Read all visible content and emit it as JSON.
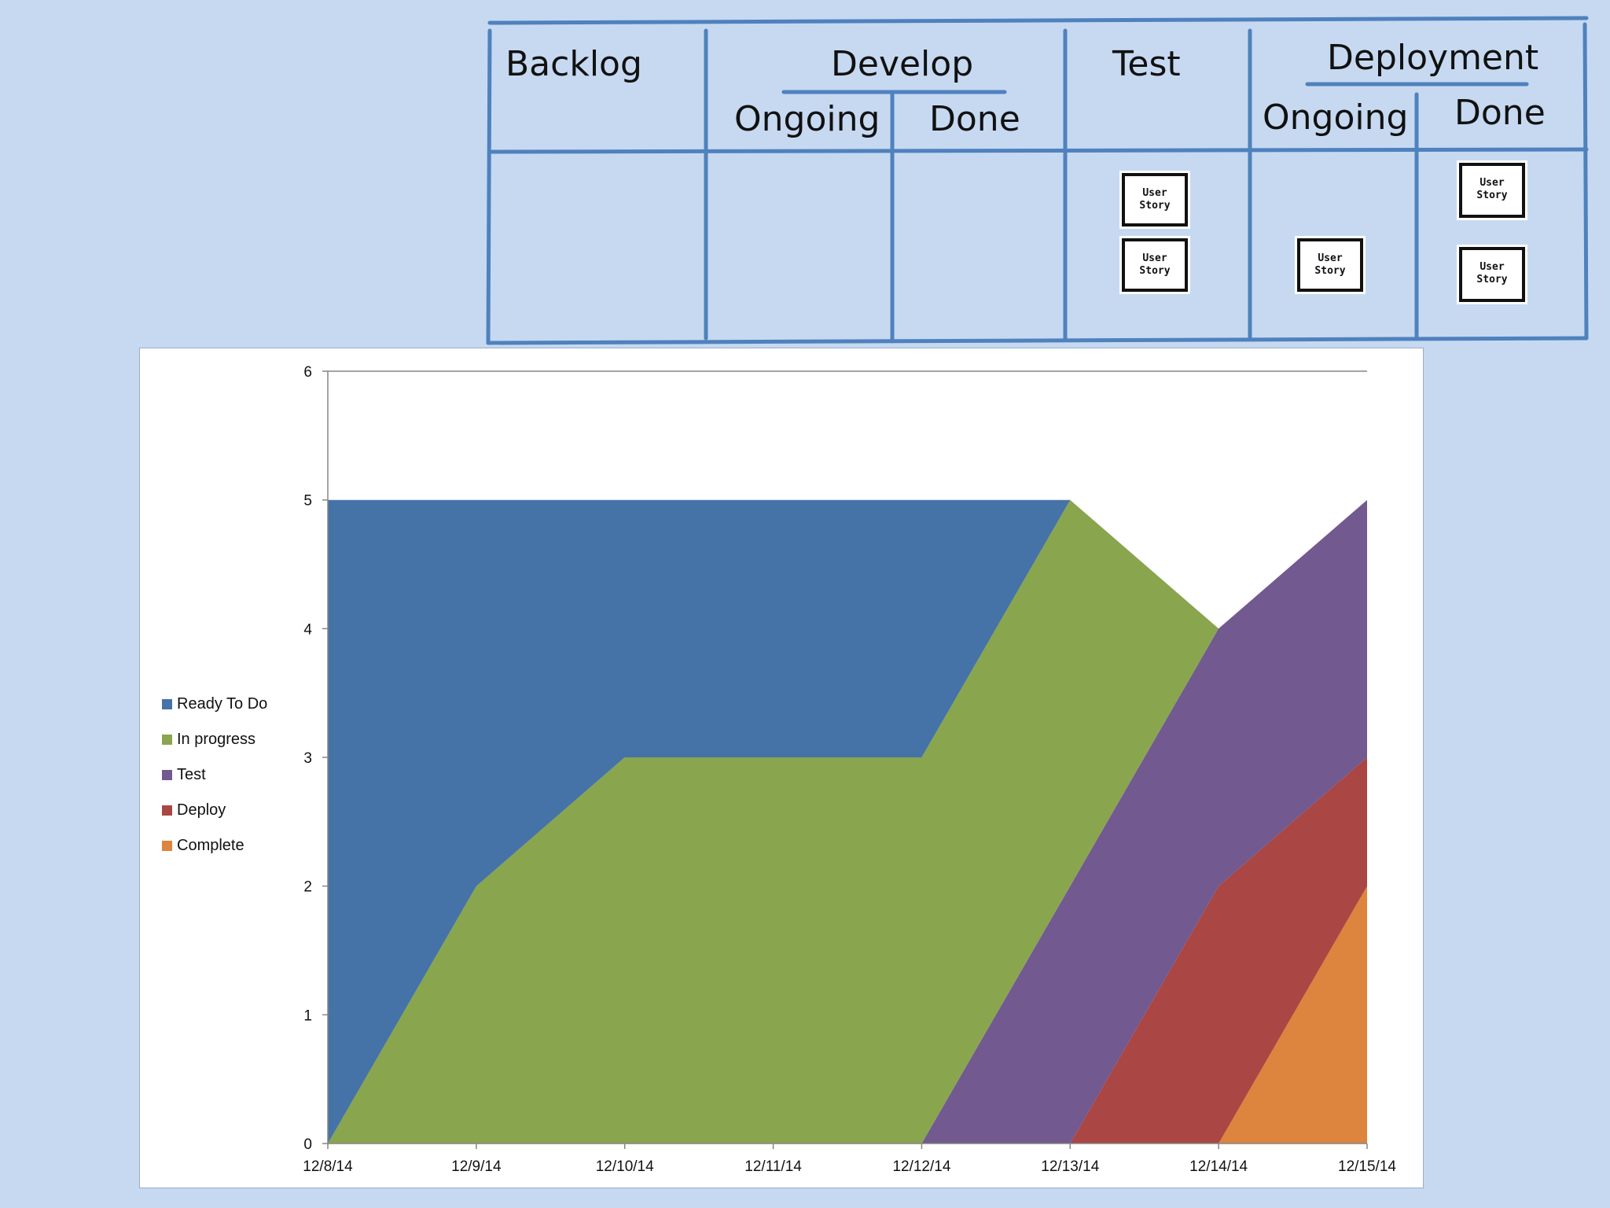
{
  "board": {
    "columns": {
      "backlog": "Backlog",
      "develop": "Develop",
      "develop_ongoing": "Ongoing",
      "develop_done": "Done",
      "test": "Test",
      "deployment": "Deployment",
      "deployment_ongoing": "Ongoing",
      "deployment_done": "Done"
    },
    "card_line1": "User",
    "card_line2": "Story",
    "line_color": "#4f81bd"
  },
  "chart_data": {
    "type": "area",
    "stacked": true,
    "categories": [
      "12/8/14",
      "12/9/14",
      "12/10/14",
      "12/11/14",
      "12/12/14",
      "12/13/14",
      "12/14/14",
      "12/15/14"
    ],
    "series": [
      {
        "name": "Complete",
        "color": "#dd843e",
        "values": [
          0,
          0,
          0,
          0,
          0,
          0,
          0,
          2
        ]
      },
      {
        "name": "Deploy",
        "color": "#aa4643",
        "values": [
          0,
          0,
          0,
          0,
          0,
          0,
          2,
          1
        ]
      },
      {
        "name": "Test",
        "color": "#725990",
        "values": [
          0,
          0,
          0,
          0,
          0,
          2,
          2,
          2
        ]
      },
      {
        "name": "In progress",
        "color": "#89a54e",
        "values": [
          0,
          2,
          3,
          3,
          3,
          3,
          0,
          0
        ]
      },
      {
        "name": "Ready To Do",
        "color": "#4572a7",
        "values": [
          5,
          3,
          2,
          2,
          2,
          0,
          0,
          0
        ]
      }
    ],
    "legend_order": [
      "Ready To Do",
      "In progress",
      "Test",
      "Deploy",
      "Complete"
    ],
    "ylim": [
      0,
      6
    ],
    "yticks": [
      0,
      1,
      2,
      3,
      4,
      5,
      6
    ],
    "legend_position": "left",
    "grid": false
  }
}
